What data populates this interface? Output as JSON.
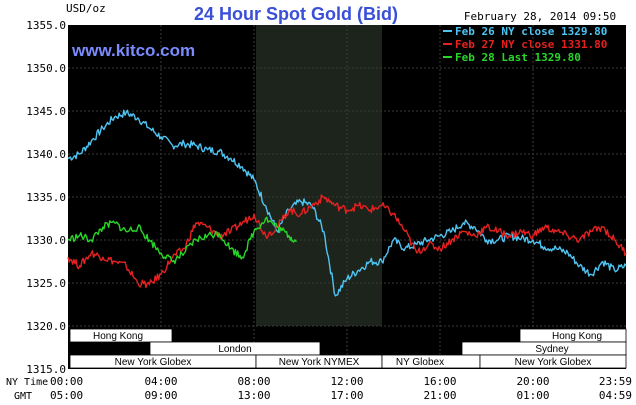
{
  "header": {
    "title": "24 Hour Spot Gold (Bid)",
    "unit": "USD/oz",
    "date": "February 28, 2014 09:50",
    "site": "www.kitco.com"
  },
  "colors": {
    "background": "#000000",
    "grid": "#3a3a3a",
    "highlight": "#1c241c",
    "feb26": "#4fc4f2",
    "feb27": "#e52121",
    "feb28": "#27d627"
  },
  "markets": {
    "row1": [
      "Hong Kong",
      "Hong Kong"
    ],
    "row2": [
      "London",
      "Sydney"
    ],
    "row3": [
      "New York Globex",
      "New York NYMEX",
      "NY Globex",
      "New York Globex"
    ]
  },
  "time_rows": [
    "NY Time",
    "GMT"
  ],
  "chart_data": {
    "type": "line",
    "title": "24 Hour Spot Gold (Bid)",
    "ylabel": "USD/oz",
    "ylim": [
      1315,
      1355
    ],
    "yticks": [
      "1355.0",
      "1350.0",
      "1345.0",
      "1340.0",
      "1335.0",
      "1330.0",
      "1325.0",
      "1320.0",
      "1315.0"
    ],
    "xlim": [
      0,
      24
    ],
    "x_ticks_ny": [
      "00:00",
      "04:00",
      "08:00",
      "12:00",
      "16:00",
      "20:00",
      "23:59"
    ],
    "x_ticks_gmt": [
      "05:00",
      "09:00",
      "13:00",
      "17:00",
      "21:00",
      "01:00",
      "04:59"
    ],
    "grid": true,
    "legend_position": "top-right",
    "series": [
      {
        "name": "Feb 26 NY close 1329.80",
        "color": "#4fc4f2",
        "x": [
          0,
          0.5,
          1,
          1.5,
          2,
          2.5,
          3,
          3.5,
          4,
          4.5,
          5,
          5.5,
          6,
          6.5,
          7,
          7.5,
          8,
          8.5,
          9,
          9.5,
          10,
          10.5,
          11,
          11.5,
          12,
          12.5,
          13,
          13.5,
          14,
          14.5,
          15,
          15.5,
          16,
          16.5,
          17,
          17.5,
          18,
          18.5,
          19,
          19.5,
          20,
          20.5,
          21,
          21.5,
          22,
          22.5,
          23,
          23.5,
          24
        ],
        "values": [
          1339.5,
          1340.0,
          1341.5,
          1343.0,
          1344.3,
          1344.8,
          1344.2,
          1343.0,
          1342.0,
          1341.0,
          1341.2,
          1341.0,
          1340.5,
          1340.3,
          1339.5,
          1338.5,
          1337.0,
          1334.0,
          1331.0,
          1333.5,
          1334.5,
          1334.0,
          1331.0,
          1323.5,
          1325.5,
          1326.5,
          1327.5,
          1327.5,
          1330.0,
          1329.0,
          1329.5,
          1330.0,
          1330.5,
          1331.0,
          1332.0,
          1331.5,
          1330.0,
          1330.0,
          1330.5,
          1330.2,
          1330.0,
          1329.2,
          1329.0,
          1328.5,
          1327.0,
          1326.0,
          1327.5,
          1326.5,
          1327.0
        ]
      },
      {
        "name": "Feb 27 NY close 1331.80",
        "color": "#e52121",
        "x": [
          0,
          0.5,
          1,
          1.5,
          2,
          2.5,
          3,
          3.5,
          4,
          4.5,
          5,
          5.5,
          6,
          6.5,
          7,
          7.5,
          8,
          8.5,
          9,
          9.5,
          10,
          10.5,
          11,
          11.5,
          12,
          12.5,
          13,
          13.5,
          14,
          14.5,
          15,
          15.5,
          16,
          16.5,
          17,
          17.5,
          18,
          18.5,
          19,
          19.5,
          20,
          20.5,
          21,
          21.5,
          22,
          22.5,
          23,
          23.5,
          24
        ],
        "values": [
          1328.0,
          1327.0,
          1328.5,
          1328.0,
          1327.5,
          1327.0,
          1325.0,
          1324.8,
          1326.0,
          1328.0,
          1329.0,
          1332.0,
          1331.5,
          1330.5,
          1331.0,
          1332.0,
          1333.0,
          1330.5,
          1331.5,
          1333.5,
          1333.0,
          1334.0,
          1335.0,
          1334.0,
          1333.5,
          1334.0,
          1333.5,
          1334.0,
          1333.0,
          1331.0,
          1328.5,
          1329.5,
          1329.0,
          1330.0,
          1331.0,
          1330.5,
          1331.5,
          1331.0,
          1330.5,
          1331.0,
          1330.5,
          1331.5,
          1331.0,
          1330.5,
          1330.0,
          1331.0,
          1331.5,
          1330.0,
          1328.5
        ]
      },
      {
        "name": "Feb 28 Last 1329.80",
        "color": "#27d627",
        "x": [
          0,
          0.5,
          1,
          1.5,
          2,
          2.5,
          3,
          3.5,
          4,
          4.5,
          5,
          5.5,
          6,
          6.5,
          7,
          7.5,
          8,
          8.5,
          9,
          9.5,
          9.83
        ],
        "values": [
          1330.0,
          1330.5,
          1330.0,
          1331.5,
          1332.0,
          1331.0,
          1331.5,
          1330.0,
          1328.5,
          1327.5,
          1328.5,
          1330.0,
          1330.5,
          1330.8,
          1329.0,
          1328.0,
          1331.0,
          1332.5,
          1331.5,
          1330.5,
          1329.8
        ]
      }
    ]
  }
}
